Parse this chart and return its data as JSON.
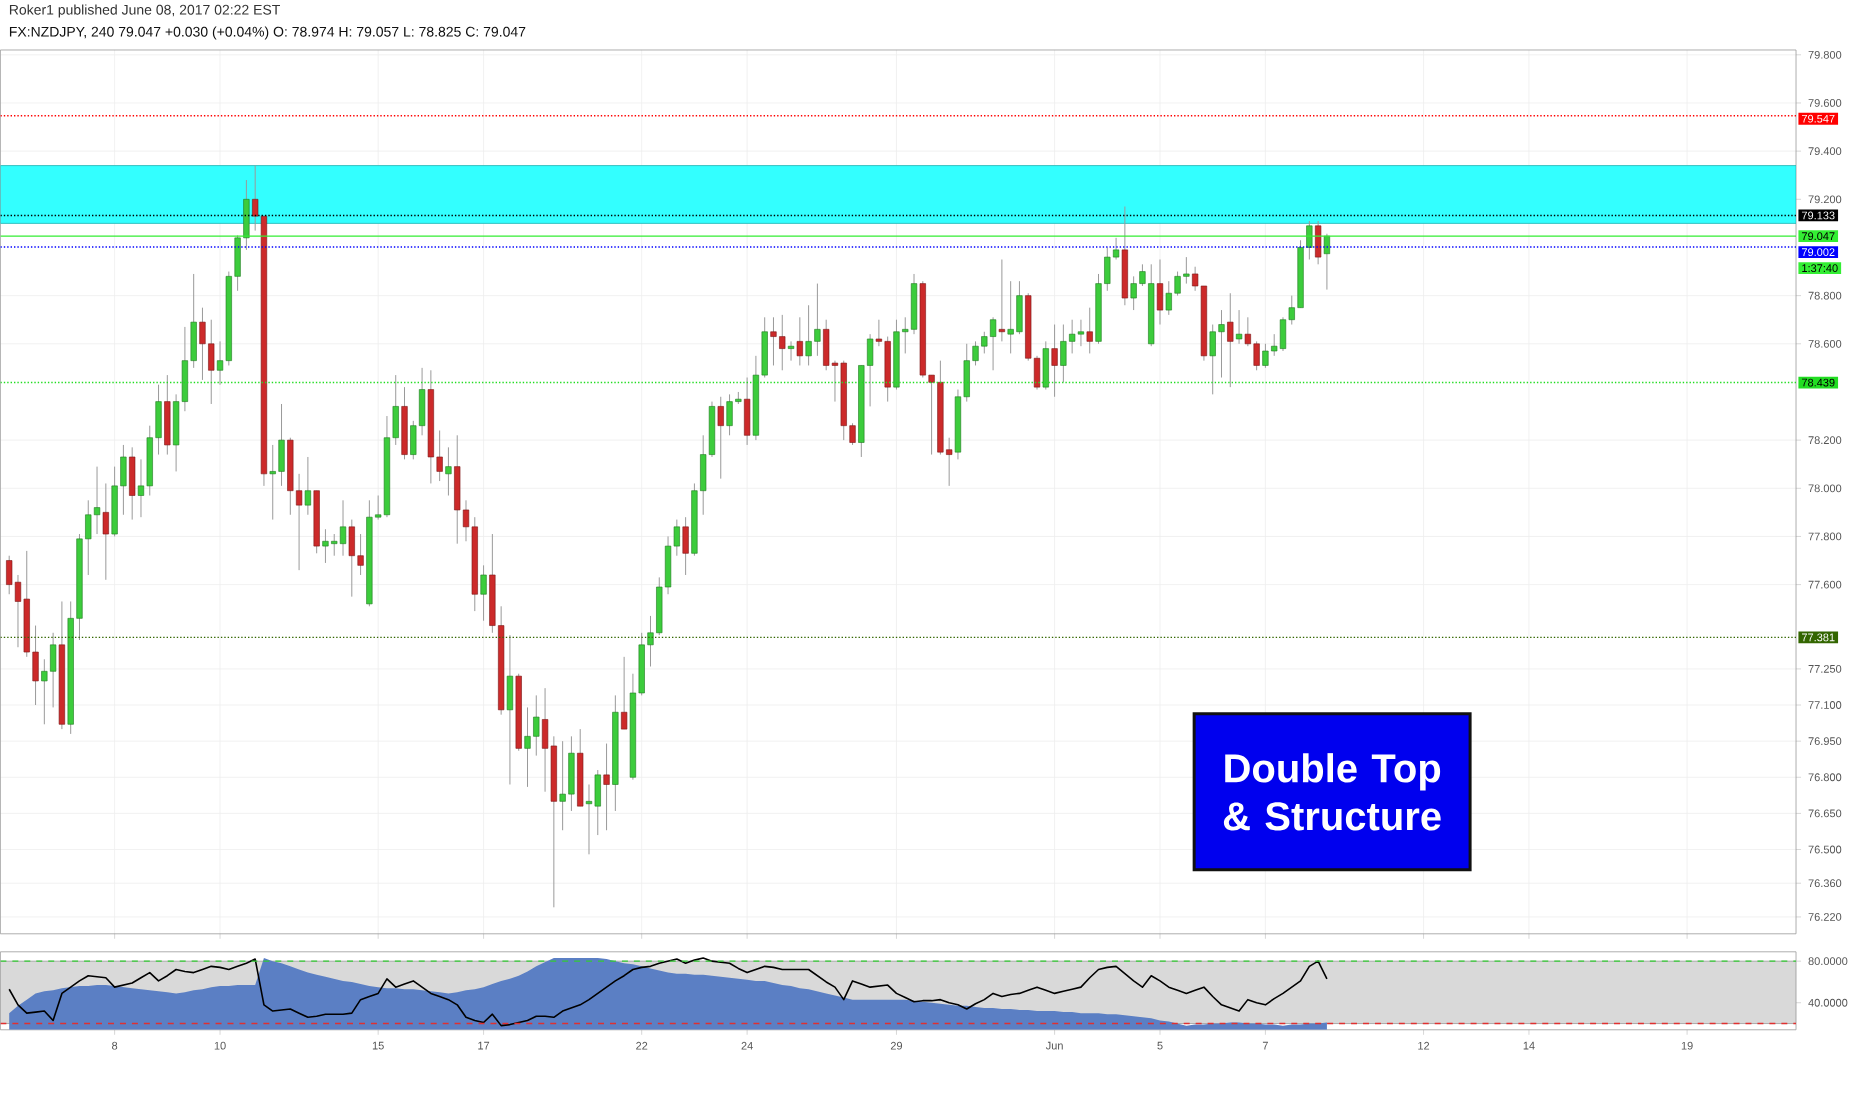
{
  "chart_data": [
    {
      "type": "candlestick",
      "title": "FX:NZDJPY, 240 79.047 +0.030 (+0.04%) O: 78.974 H: 79.057 L: 78.825 C: 79.047",
      "subtitle": "Roker1 published June 08, 2017 02:22 EST",
      "categories": [
        null,
        null,
        null,
        null,
        null,
        null,
        null,
        null,
        null,
        null,
        null,
        null,
        null,
        null,
        null,
        null,
        null,
        null,
        null,
        null,
        null,
        null,
        null,
        null,
        null,
        null,
        null,
        null,
        null,
        null,
        null,
        null,
        null,
        null,
        null,
        null,
        null,
        null,
        null,
        null,
        null,
        null,
        null,
        null,
        null,
        null,
        null,
        null,
        null,
        null,
        null,
        null,
        null,
        null,
        null,
        null,
        null,
        null,
        null,
        null,
        null,
        null,
        null,
        null,
        null,
        null,
        null,
        null,
        null,
        null,
        null,
        null,
        null,
        null,
        null,
        null,
        null,
        null,
        null,
        null,
        null,
        null,
        null,
        null,
        null,
        null,
        null,
        null,
        null,
        null,
        null,
        null,
        null,
        null,
        null,
        null,
        null,
        null,
        null,
        null,
        null,
        null,
        null,
        null,
        null,
        null,
        null,
        null,
        null,
        null,
        null,
        null,
        null,
        null,
        null,
        null,
        null,
        null,
        null,
        null,
        null,
        null,
        null,
        null,
        null,
        null,
        null,
        null,
        null,
        null,
        null,
        null,
        null,
        null,
        null,
        null,
        null,
        null,
        null,
        null,
        null,
        null,
        null,
        null,
        null,
        null,
        null,
        null,
        null,
        null,
        null,
        null,
        null,
        null,
        null,
        null,
        null,
        null,
        null,
        null,
        null,
        null,
        null,
        null,
        null,
        null,
        null,
        null,
        null,
        null,
        null,
        null,
        null,
        null,
        null,
        null,
        null,
        null,
        null,
        null,
        null,
        null,
        null,
        null,
        null,
        null,
        null,
        null,
        null,
        null,
        null,
        null,
        null,
        null,
        null,
        null,
        null,
        null,
        null,
        null,
        null,
        null,
        null,
        null
      ],
      "ohlc": [
        [
          77.7,
          77.72,
          77.56,
          77.6
        ],
        [
          77.61,
          77.64,
          77.34,
          77.53
        ],
        [
          77.54,
          77.74,
          77.3,
          77.32
        ],
        [
          77.32,
          77.43,
          77.1,
          77.2
        ],
        [
          77.2,
          77.29,
          77.02,
          77.24
        ],
        [
          77.24,
          77.4,
          77.09,
          77.35
        ],
        [
          77.35,
          77.53,
          77.0,
          77.02
        ],
        [
          77.02,
          77.53,
          76.98,
          77.46
        ],
        [
          77.46,
          77.81,
          77.37,
          77.79
        ],
        [
          77.79,
          77.95,
          77.64,
          77.89
        ],
        [
          77.89,
          78.09,
          77.81,
          77.92
        ],
        [
          77.9,
          78.02,
          77.62,
          77.81
        ],
        [
          77.81,
          78.09,
          77.8,
          78.01
        ],
        [
          78.01,
          78.18,
          77.89,
          78.13
        ],
        [
          78.13,
          78.17,
          77.87,
          77.97
        ],
        [
          77.97,
          78.12,
          77.88,
          78.01
        ],
        [
          78.01,
          78.26,
          77.97,
          78.21
        ],
        [
          78.21,
          78.43,
          78.14,
          78.36
        ],
        [
          78.36,
          78.47,
          78.14,
          78.18
        ],
        [
          78.18,
          78.39,
          78.07,
          78.36
        ],
        [
          78.36,
          78.67,
          78.32,
          78.53
        ],
        [
          78.53,
          78.89,
          78.5,
          78.69
        ],
        [
          78.69,
          78.75,
          78.45,
          78.6
        ],
        [
          78.6,
          78.7,
          78.35,
          78.49
        ],
        [
          78.49,
          78.61,
          78.43,
          78.53
        ],
        [
          78.53,
          78.9,
          78.51,
          78.88
        ],
        [
          78.88,
          79.05,
          78.82,
          79.04
        ],
        [
          79.04,
          79.28,
          78.99,
          79.2
        ],
        [
          79.2,
          79.34,
          79.07,
          79.13
        ],
        [
          79.13,
          79.13,
          78.01,
          78.06
        ],
        [
          78.06,
          78.18,
          77.87,
          78.07
        ],
        [
          78.07,
          78.35,
          78.01,
          78.2
        ],
        [
          78.2,
          78.21,
          77.89,
          77.99
        ],
        [
          77.99,
          78.06,
          77.66,
          77.93
        ],
        [
          77.93,
          78.13,
          77.89,
          77.99
        ],
        [
          77.99,
          77.99,
          77.73,
          77.76
        ],
        [
          77.76,
          77.83,
          77.69,
          77.78
        ],
        [
          77.77,
          77.81,
          77.72,
          77.78
        ],
        [
          77.77,
          77.95,
          77.72,
          77.84
        ],
        [
          77.84,
          77.87,
          77.55,
          77.72
        ],
        [
          77.72,
          77.81,
          77.64,
          77.68
        ],
        [
          77.52,
          77.95,
          77.51,
          77.88
        ],
        [
          77.88,
          77.97,
          77.87,
          77.89
        ],
        [
          77.89,
          78.3,
          77.88,
          78.21
        ],
        [
          78.21,
          78.47,
          78.18,
          78.34
        ],
        [
          78.34,
          78.42,
          78.12,
          78.14
        ],
        [
          78.14,
          78.28,
          78.12,
          78.26
        ],
        [
          78.26,
          78.5,
          78.22,
          78.41
        ],
        [
          78.41,
          78.49,
          78.02,
          78.13
        ],
        [
          78.13,
          78.24,
          78.03,
          78.07
        ],
        [
          78.06,
          78.17,
          77.97,
          78.09
        ],
        [
          78.09,
          78.22,
          77.77,
          77.91
        ],
        [
          77.91,
          77.95,
          77.78,
          77.84
        ],
        [
          77.84,
          77.88,
          77.49,
          77.56
        ],
        [
          77.56,
          77.68,
          77.45,
          77.64
        ],
        [
          77.64,
          77.81,
          77.4,
          77.43
        ],
        [
          77.43,
          77.51,
          77.06,
          77.08
        ],
        [
          77.08,
          77.39,
          76.77,
          77.22
        ],
        [
          77.22,
          77.23,
          76.91,
          76.92
        ],
        [
          76.92,
          77.09,
          76.76,
          76.97
        ],
        [
          76.97,
          77.14,
          76.89,
          77.05
        ],
        [
          77.04,
          77.17,
          76.74,
          76.92
        ],
        [
          76.93,
          76.97,
          76.26,
          76.7
        ],
        [
          76.7,
          76.95,
          76.58,
          76.73
        ],
        [
          76.73,
          76.97,
          76.66,
          76.9
        ],
        [
          76.9,
          77.0,
          76.68,
          76.68
        ],
        [
          76.69,
          76.77,
          76.48,
          76.7
        ],
        [
          76.68,
          76.83,
          76.56,
          76.81
        ],
        [
          76.81,
          76.94,
          76.58,
          76.77
        ],
        [
          76.77,
          77.14,
          76.66,
          77.07
        ],
        [
          77.07,
          77.3,
          77.0,
          77.0
        ],
        [
          76.8,
          77.23,
          76.79,
          77.15
        ],
        [
          77.15,
          77.4,
          77.14,
          77.35
        ],
        [
          77.35,
          77.47,
          77.26,
          77.4
        ],
        [
          77.4,
          77.63,
          77.39,
          77.59
        ],
        [
          77.59,
          77.8,
          77.56,
          77.76
        ],
        [
          77.76,
          77.87,
          77.72,
          77.84
        ],
        [
          77.84,
          77.88,
          77.64,
          77.73
        ],
        [
          77.73,
          78.02,
          77.72,
          77.99
        ],
        [
          77.99,
          78.22,
          77.89,
          78.14
        ],
        [
          78.14,
          78.36,
          78.13,
          78.34
        ],
        [
          78.34,
          78.38,
          78.04,
          78.26
        ],
        [
          78.26,
          78.39,
          78.22,
          78.36
        ],
        [
          78.36,
          78.4,
          78.35,
          78.37
        ],
        [
          78.37,
          78.46,
          78.18,
          78.22
        ],
        [
          78.22,
          78.55,
          78.2,
          78.47
        ],
        [
          78.47,
          78.71,
          78.46,
          78.65
        ],
        [
          78.65,
          78.71,
          78.51,
          78.63
        ],
        [
          78.63,
          78.72,
          78.49,
          78.58
        ],
        [
          78.58,
          78.61,
          78.53,
          78.59
        ],
        [
          78.61,
          78.71,
          78.51,
          78.55
        ],
        [
          78.55,
          78.76,
          78.51,
          78.61
        ],
        [
          78.61,
          78.85,
          78.55,
          78.66
        ],
        [
          78.66,
          78.7,
          78.49,
          78.51
        ],
        [
          78.52,
          78.53,
          78.36,
          78.51
        ],
        [
          78.52,
          78.53,
          78.2,
          78.26
        ],
        [
          78.26,
          78.27,
          78.18,
          78.19
        ],
        [
          78.19,
          78.51,
          78.13,
          78.51
        ],
        [
          78.51,
          78.64,
          78.34,
          78.62
        ],
        [
          78.62,
          78.7,
          78.59,
          78.61
        ],
        [
          78.61,
          78.63,
          78.36,
          78.42
        ],
        [
          78.42,
          78.7,
          78.41,
          78.65
        ],
        [
          78.65,
          78.71,
          78.56,
          78.66
        ],
        [
          78.66,
          78.89,
          78.64,
          78.85
        ],
        [
          78.85,
          78.86,
          78.46,
          78.47
        ],
        [
          78.47,
          78.47,
          78.14,
          78.44
        ],
        [
          78.44,
          78.53,
          78.14,
          78.15
        ],
        [
          78.16,
          78.21,
          78.01,
          78.14
        ],
        [
          78.15,
          78.41,
          78.12,
          78.38
        ],
        [
          78.38,
          78.6,
          78.36,
          78.53
        ],
        [
          78.53,
          78.61,
          78.51,
          78.59
        ],
        [
          78.59,
          78.65,
          78.56,
          78.63
        ],
        [
          78.63,
          78.71,
          78.49,
          78.7
        ],
        [
          78.66,
          78.95,
          78.61,
          78.65
        ],
        [
          78.64,
          78.86,
          78.56,
          78.66
        ],
        [
          78.65,
          78.86,
          78.64,
          78.8
        ],
        [
          78.8,
          78.81,
          78.53,
          78.54
        ],
        [
          78.54,
          78.55,
          78.41,
          78.42
        ],
        [
          78.42,
          78.61,
          78.41,
          78.58
        ],
        [
          78.58,
          78.68,
          78.38,
          78.51
        ],
        [
          78.51,
          78.68,
          78.44,
          78.61
        ],
        [
          78.61,
          78.7,
          78.56,
          78.64
        ],
        [
          78.64,
          78.7,
          78.59,
          78.65
        ],
        [
          78.65,
          78.75,
          78.56,
          78.61
        ],
        [
          78.61,
          78.89,
          78.6,
          78.85
        ],
        [
          78.85,
          79.0,
          78.82,
          78.96
        ],
        [
          78.96,
          79.04,
          78.95,
          78.99
        ],
        [
          78.99,
          79.17,
          78.76,
          78.79
        ],
        [
          78.79,
          78.88,
          78.74,
          78.85
        ],
        [
          78.85,
          78.93,
          78.84,
          78.9
        ],
        [
          78.6,
          78.93,
          78.59,
          78.85
        ],
        [
          78.85,
          78.95,
          78.68,
          78.74
        ],
        [
          78.74,
          78.86,
          78.72,
          78.81
        ],
        [
          78.81,
          78.9,
          78.8,
          78.88
        ],
        [
          78.88,
          78.96,
          78.85,
          78.89
        ],
        [
          78.89,
          78.92,
          78.82,
          78.84
        ],
        [
          78.84,
          78.84,
          78.53,
          78.55
        ],
        [
          78.55,
          78.68,
          78.39,
          78.65
        ],
        [
          78.65,
          78.74,
          78.46,
          78.68
        ],
        [
          78.69,
          78.81,
          78.42,
          78.61
        ],
        [
          78.62,
          78.74,
          78.6,
          78.64
        ],
        [
          78.64,
          78.71,
          78.59,
          78.6
        ],
        [
          78.6,
          78.61,
          78.49,
          78.51
        ],
        [
          78.51,
          78.6,
          78.5,
          78.57
        ],
        [
          78.57,
          78.64,
          78.55,
          78.59
        ],
        [
          78.58,
          78.71,
          78.57,
          78.7
        ],
        [
          78.7,
          78.8,
          78.68,
          78.75
        ],
        [
          78.75,
          79.03,
          78.75,
          79.0
        ],
        [
          79.0,
          79.11,
          78.95,
          79.09
        ],
        [
          79.09,
          79.11,
          78.93,
          78.96
        ],
        [
          78.974,
          79.057,
          78.825,
          79.047
        ],
        null,
        null,
        null,
        null,
        null,
        null,
        null,
        null,
        null,
        null,
        null,
        null,
        null,
        null,
        null,
        null,
        null,
        null,
        null,
        null,
        null,
        null,
        null,
        null,
        null,
        null,
        null,
        null,
        null,
        null,
        null,
        null,
        null,
        null,
        null,
        null,
        null,
        null,
        null,
        null,
        null,
        null,
        null,
        null,
        null,
        null,
        null,
        null,
        null,
        null,
        null,
        null,
        null
      ],
      "ylim": [
        76.15,
        79.82
      ],
      "yticks": [
        {
          "value": 79.8,
          "label": "79.800"
        },
        {
          "value": 79.6,
          "label": "79.600"
        },
        {
          "value": 79.4,
          "label": "79.400"
        },
        {
          "value": 79.2,
          "label": "79.200"
        },
        {
          "value": 78.8,
          "label": "78.800"
        },
        {
          "value": 78.6,
          "label": "78.600"
        },
        {
          "value": 78.2,
          "label": "78.200"
        },
        {
          "value": 78.0,
          "label": "78.000"
        },
        {
          "value": 77.8,
          "label": "77.800"
        },
        {
          "value": 77.6,
          "label": "77.600"
        },
        {
          "value": 77.25,
          "label": "77.250"
        },
        {
          "value": 77.1,
          "label": "77.100"
        },
        {
          "value": 76.95,
          "label": "76.950"
        },
        {
          "value": 76.8,
          "label": "76.800"
        },
        {
          "value": 76.65,
          "label": "76.650"
        },
        {
          "value": 76.5,
          "label": "76.500"
        },
        {
          "value": 76.36,
          "label": "76.360"
        },
        {
          "value": 76.22,
          "label": "76.220"
        }
      ],
      "tick_labels": "y",
      "grid": true,
      "bands": [
        {
          "axis": "y",
          "from": 79.1,
          "to": 79.34,
          "color": "#33ffff"
        }
      ],
      "ref_lines": [
        {
          "axis": "y",
          "value": 79.547,
          "label": "79.547",
          "color": "#ff0000",
          "line_style": "dotted"
        },
        {
          "axis": "y",
          "value": 79.133,
          "label": "79.133",
          "color": "#000000",
          "line_style": "dotted"
        },
        {
          "axis": "y",
          "value": 79.047,
          "label": "79.047",
          "color": "#33ee33",
          "line_style": "solid"
        },
        {
          "axis": "y",
          "value": 79.002,
          "label": "79.002",
          "color": "#0000ff",
          "line_style": "dotted"
        },
        {
          "axis": "y",
          "value": 78.439,
          "label": "78.439",
          "color": "#22dd22",
          "line_style": "dotted"
        },
        {
          "axis": "y",
          "value": 77.381,
          "label": "77.381",
          "color": "#336600",
          "line_style": "dotted"
        }
      ],
      "annotations": [
        "1:37:40",
        "Double Top & Structure"
      ]
    },
    {
      "type": "line",
      "categories": [
        null,
        null,
        null,
        null,
        null,
        null,
        null,
        null,
        null,
        null,
        null,
        null,
        "8",
        null,
        null,
        null,
        null,
        null,
        null,
        null,
        null,
        null,
        null,
        null,
        "10",
        null,
        null,
        null,
        null,
        null,
        null,
        null,
        null,
        null,
        null,
        null,
        null,
        null,
        null,
        null,
        null,
        null,
        "15",
        null,
        null,
        null,
        null,
        null,
        null,
        null,
        null,
        null,
        null,
        null,
        "17",
        null,
        null,
        null,
        null,
        null,
        null,
        null,
        null,
        null,
        null,
        null,
        null,
        null,
        null,
        null,
        null,
        null,
        "22",
        null,
        null,
        null,
        null,
        null,
        null,
        null,
        null,
        null,
        null,
        null,
        "24",
        null,
        null,
        null,
        null,
        null,
        null,
        null,
        null,
        null,
        null,
        null,
        null,
        null,
        null,
        null,
        null,
        "29",
        null,
        null,
        null,
        null,
        null,
        null,
        null,
        null,
        null,
        null,
        null,
        null,
        null,
        null,
        null,
        null,
        null,
        "Jun",
        null,
        null,
        null,
        null,
        null,
        null,
        null,
        null,
        null,
        null,
        null,
        "5",
        null,
        null,
        null,
        null,
        null,
        null,
        null,
        null,
        null,
        null,
        null,
        "7",
        null,
        null,
        null,
        null,
        null,
        null,
        null,
        null,
        null,
        null,
        null,
        null,
        null,
        null,
        null,
        null,
        null,
        "12",
        null,
        null,
        null,
        null,
        null,
        null,
        null,
        null,
        null,
        null,
        null,
        "14",
        null,
        null,
        null,
        null,
        null,
        null,
        null,
        null,
        null,
        null,
        null,
        null,
        null,
        null,
        null,
        null,
        null,
        "19",
        null,
        null,
        null,
        null,
        null,
        null,
        null,
        null,
        null,
        null,
        null,
        null
      ],
      "series": [
        {
          "type": "area",
          "color": "#5b7fc4",
          "values": [
            30,
            37,
            43,
            49,
            51,
            52,
            54,
            55,
            56,
            56,
            57,
            57,
            56,
            55,
            54,
            53,
            52,
            51,
            50,
            49,
            50,
            52,
            53,
            55,
            56,
            56,
            57,
            57,
            57,
            83,
            80,
            78,
            75,
            72,
            69,
            67,
            65,
            63,
            61,
            60,
            58,
            56,
            55,
            54,
            54,
            53,
            53,
            52,
            51,
            50,
            49,
            50,
            52,
            53,
            55,
            58,
            61,
            63,
            66,
            70,
            75,
            79,
            83,
            83,
            83,
            83,
            83,
            83,
            82,
            80,
            78,
            77,
            75,
            73,
            71,
            69,
            68,
            68,
            67,
            67,
            66,
            65,
            64,
            63,
            62,
            61,
            61,
            59,
            57,
            56,
            54,
            53,
            51,
            49,
            47,
            45,
            43,
            43,
            43,
            43,
            43,
            43,
            43,
            42,
            41,
            40,
            39,
            38,
            37,
            37,
            36,
            35,
            35,
            34,
            34,
            33,
            33,
            32,
            32,
            32,
            31,
            31,
            30,
            30,
            30,
            29,
            29,
            28,
            27,
            26,
            25,
            23,
            22,
            20,
            18,
            19,
            19,
            20,
            20,
            21,
            21,
            20,
            20,
            19,
            19,
            18,
            19,
            19,
            20,
            20,
            21,
            null,
            null,
            null,
            null,
            null,
            null,
            null,
            null,
            null,
            null,
            null,
            null,
            null,
            null,
            null,
            null,
            null,
            null,
            null,
            null,
            null,
            null,
            null,
            null,
            null,
            null,
            null,
            null,
            null,
            null,
            null,
            null,
            null,
            null,
            null,
            null,
            null,
            null,
            null,
            null,
            null,
            null,
            null,
            null,
            null,
            null,
            null,
            null,
            null,
            null,
            null,
            null,
            null
          ]
        },
        {
          "type": "line",
          "color": "#000000",
          "values": [
            53,
            38,
            30,
            31,
            32,
            23,
            49,
            55,
            61,
            66,
            65,
            64,
            55,
            57,
            59,
            64,
            69,
            61,
            66,
            72,
            70,
            69,
            72,
            75,
            74,
            72,
            75,
            78,
            82,
            38,
            32,
            33,
            34,
            30,
            26,
            27,
            29,
            29,
            29,
            30,
            43,
            46,
            49,
            63,
            55,
            58,
            61,
            55,
            49,
            46,
            43,
            38,
            26,
            23,
            21,
            29,
            18,
            19,
            21,
            23,
            27,
            27,
            26,
            32,
            35,
            38,
            43,
            49,
            55,
            61,
            66,
            72,
            74,
            75,
            78,
            80,
            82,
            78,
            81,
            83,
            80,
            79,
            78,
            73,
            69,
            72,
            75,
            74,
            72,
            72,
            72,
            72,
            66,
            60,
            55,
            43,
            61,
            58,
            55,
            56,
            57,
            49,
            45,
            41,
            42,
            42,
            43,
            40,
            38,
            34,
            39,
            43,
            49,
            46,
            48,
            49,
            52,
            55,
            52,
            49,
            51,
            53,
            55,
            64,
            72,
            74,
            75,
            68,
            61,
            55,
            66,
            61,
            55,
            52,
            49,
            52,
            55,
            46,
            38,
            35,
            32,
            43,
            40,
            38,
            44,
            49,
            55,
            61,
            75,
            80,
            63,
            null,
            null,
            null,
            null,
            null,
            null,
            null,
            null,
            null,
            null,
            null,
            null,
            null,
            null,
            null,
            null,
            null,
            null,
            null,
            null,
            null,
            null,
            null,
            null,
            null,
            null,
            null,
            null,
            null,
            null,
            null,
            null,
            null,
            null,
            null,
            null,
            null,
            null,
            null,
            null,
            null,
            null,
            null,
            null,
            null,
            null,
            null,
            null,
            null,
            null,
            null,
            null,
            null
          ]
        }
      ],
      "ylim": [
        14,
        89
      ],
      "yticks": [
        {
          "value": 80,
          "label": "80.0000"
        },
        {
          "value": 40,
          "label": "40.0000"
        }
      ],
      "bands": [
        {
          "axis": "y",
          "from": 20,
          "to": 80,
          "color": "#d9d9d9"
        }
      ],
      "ref_lines": [
        {
          "axis": "y",
          "value": 80,
          "color": "#33cc33",
          "line_style": "dashed"
        },
        {
          "axis": "y",
          "value": 20,
          "color": "#e03030",
          "line_style": "dashed"
        }
      ]
    }
  ]
}
